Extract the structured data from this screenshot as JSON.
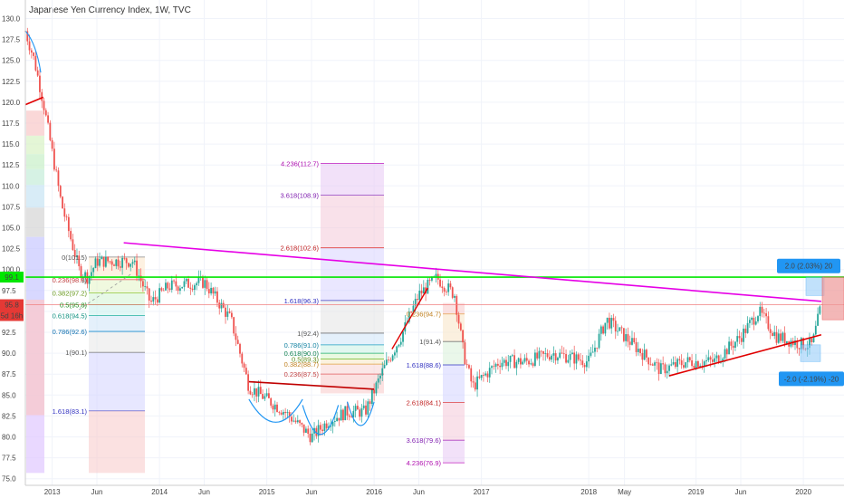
{
  "title": "Japanese Yen Currency Index, 1W, TVC",
  "price_labels": {
    "green": "99.1",
    "red": "95.8",
    "countdown": "5d 16h"
  },
  "callouts": {
    "up": "2.0 (2.03%) 20",
    "down": "-2.0 (-2.19%) -20"
  },
  "colors": {
    "green_line": "#00e600",
    "magenta_line": "#e600e6",
    "trend_red": "#e00000",
    "bull": "#26a69a",
    "bear": "#ef5350",
    "callout": "#2196f3"
  },
  "chart_data": {
    "type": "candlestick",
    "title": "Japanese Yen Currency Index, 1W, TVC",
    "ylim": [
      74.5,
      131
    ],
    "y_ticks": [
      75.0,
      77.5,
      80.0,
      82.5,
      85.0,
      87.5,
      90.0,
      92.5,
      95.0,
      97.5,
      100.0,
      102.5,
      105.0,
      107.5,
      110.0,
      112.5,
      115.0,
      117.5,
      120.0,
      122.5,
      125.0,
      127.5,
      130.0
    ],
    "x_tick_labels": [
      "2013",
      "Jun",
      "2014",
      "Jun",
      "2015",
      "Jun",
      "2016",
      "Jun",
      "2017",
      "2018",
      "May",
      "2019",
      "Jun",
      "2020"
    ],
    "price_path_approx": [
      [
        "2012-10",
        128.5
      ],
      [
        "2012-11",
        125
      ],
      [
        "2012-12",
        120
      ],
      [
        "2013-01",
        114
      ],
      [
        "2013-02",
        108
      ],
      [
        "2013-03",
        104
      ],
      [
        "2013-04",
        100
      ],
      [
        "2013-05",
        99
      ],
      [
        "2013-06",
        101
      ],
      [
        "2013-08",
        101
      ],
      [
        "2013-10",
        101
      ],
      [
        "2013-12",
        96
      ],
      [
        "2014-02",
        98
      ],
      [
        "2014-06",
        98.5
      ],
      [
        "2014-09",
        94
      ],
      [
        "2014-11",
        86
      ],
      [
        "2015-03",
        83
      ],
      [
        "2015-06",
        80
      ],
      [
        "2015-08",
        82
      ],
      [
        "2015-10",
        83
      ],
      [
        "2015-12",
        83
      ],
      [
        "2016-02",
        88
      ],
      [
        "2016-04",
        92
      ],
      [
        "2016-06",
        97
      ],
      [
        "2016-08",
        99
      ],
      [
        "2016-10",
        97
      ],
      [
        "2016-11",
        90
      ],
      [
        "2016-12",
        86
      ],
      [
        "2017-03",
        89
      ],
      [
        "2017-06",
        89
      ],
      [
        "2017-09",
        90
      ],
      [
        "2018-01",
        89
      ],
      [
        "2018-03",
        94
      ],
      [
        "2018-06",
        91
      ],
      [
        "2018-09",
        88
      ],
      [
        "2018-12",
        89
      ],
      [
        "2019-03",
        89
      ],
      [
        "2019-06",
        92
      ],
      [
        "2019-08",
        95
      ],
      [
        "2019-10",
        92
      ],
      [
        "2020-01",
        91
      ],
      [
        "2020-02",
        91
      ],
      [
        "2020-03",
        95.8
      ]
    ],
    "horizontal_lines": [
      {
        "name": "support-green",
        "value": 99.1
      },
      {
        "name": "current-price",
        "value": 95.8
      }
    ],
    "trend_lines": [
      {
        "name": "magenta-downtrend",
        "from": [
          "2013-09",
          103.2
        ],
        "to": [
          "2020-03",
          96.2
        ]
      },
      {
        "name": "red-uptrend-2019",
        "from": [
          "2018-10",
          87.3
        ],
        "to": [
          "2020-03",
          92.2
        ]
      },
      {
        "name": "red-neckline-2015",
        "from": [
          "2014-11",
          86.6
        ],
        "to": [
          "2016-01",
          85.7
        ]
      },
      {
        "name": "red-top-2012",
        "from": [
          "2012-10",
          119.7
        ],
        "to": [
          "2012-12",
          120.6
        ]
      }
    ],
    "fib_retracement_2013": {
      "levels": [
        {
          "label": "0(101.5)",
          "value": 101.5
        },
        {
          "label": "0.236(98.8)",
          "value": 98.8
        },
        {
          "label": "0.382(97.2)",
          "value": 97.2
        },
        {
          "label": "0.5(95.8)",
          "value": 95.8
        },
        {
          "label": "0.618(94.5)",
          "value": 94.5
        },
        {
          "label": "0.786(92.6)",
          "value": 92.6
        },
        {
          "label": "1(90.1)",
          "value": 90.1
        },
        {
          "label": "1.618(83.1)",
          "value": 83.1
        }
      ]
    },
    "fib_extension_2015": {
      "levels": [
        {
          "label": "0.236(87.5)",
          "value": 87.5
        },
        {
          "label": "0.382(88.7)",
          "value": 88.7
        },
        {
          "label": "0.5(89.3)",
          "value": 89.3
        },
        {
          "label": "0.618(90.0)",
          "value": 90.0
        },
        {
          "label": "0.786(91.0)",
          "value": 91.0
        },
        {
          "label": "1(92.4)",
          "value": 92.4
        },
        {
          "label": "1.618(96.3)",
          "value": 96.3
        },
        {
          "label": "2.618(102.6)",
          "value": 102.6
        },
        {
          "label": "3.618(108.9)",
          "value": 108.9
        },
        {
          "label": "4.236(112.7)",
          "value": 112.7
        }
      ]
    },
    "fib_extension_2016": {
      "levels": [
        {
          "label": "0.236(94.7)",
          "value": 94.7
        },
        {
          "label": "1(91.4)",
          "value": 91.4
        },
        {
          "label": "1.618(88.6)",
          "value": 88.6
        },
        {
          "label": "2.618(84.1)",
          "value": 84.1
        },
        {
          "label": "3.618(79.6)",
          "value": 79.6
        },
        {
          "label": "4.236(76.9)",
          "value": 76.9
        }
      ]
    },
    "fib_2012_left": {
      "levels": [
        {
          "value": 119.0
        },
        {
          "value": 116.0
        },
        {
          "value": 113.8
        },
        {
          "value": 112.0
        },
        {
          "value": 110.1
        },
        {
          "value": 107.4
        },
        {
          "value": 103.9
        },
        {
          "value": 96.4
        },
        {
          "value": 82.6
        }
      ]
    }
  }
}
